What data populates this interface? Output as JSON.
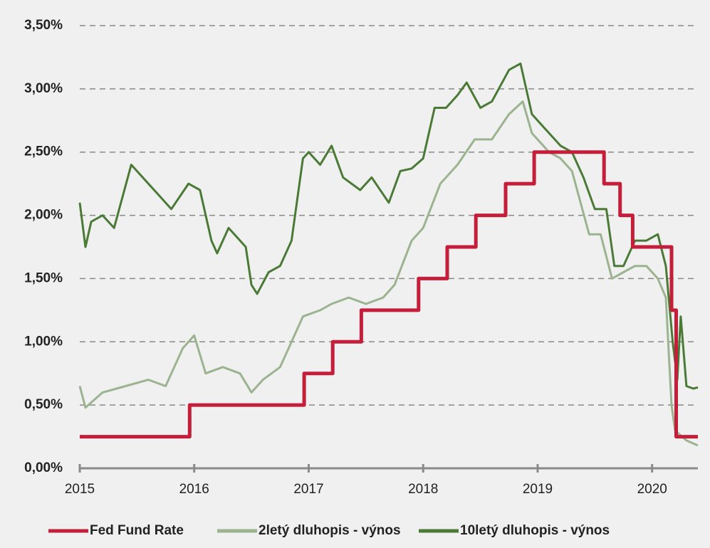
{
  "chart_data": {
    "type": "line",
    "xlim": [
      2015,
      2020.4
    ],
    "xticks": [
      2015,
      2016,
      2017,
      2018,
      2019,
      2020
    ],
    "ylim": [
      0,
      3.5
    ],
    "yticks": [
      {
        "value": 0,
        "label": "0,00%"
      },
      {
        "value": 0.5,
        "label": "0,50%"
      },
      {
        "value": 1,
        "label": "1,00%"
      },
      {
        "value": 1.5,
        "label": "1,50%"
      },
      {
        "value": 2,
        "label": "2,00%"
      },
      {
        "value": 2.5,
        "label": "2,50%"
      },
      {
        "value": 3,
        "label": "3,00%"
      },
      {
        "value": 3.5,
        "label": "3,50%"
      }
    ],
    "grid": true,
    "legend": "bottom",
    "series": [
      {
        "name": "Fed Fund Rate",
        "color": "#c41e3a",
        "width": 5,
        "x": [
          2015,
          2015.96,
          2015.96,
          2016.96,
          2016.96,
          2017.21,
          2017.21,
          2017.46,
          2017.46,
          2017.96,
          2017.96,
          2018.21,
          2018.21,
          2018.46,
          2018.46,
          2018.72,
          2018.72,
          2018.97,
          2018.97,
          2019.58,
          2019.58,
          2019.72,
          2019.72,
          2019.83,
          2019.83,
          2020.17,
          2020.17,
          2020.21,
          2020.21,
          2020.4
        ],
        "values": [
          0.25,
          0.25,
          0.5,
          0.5,
          0.75,
          0.75,
          1,
          1,
          1.25,
          1.25,
          1.5,
          1.5,
          1.75,
          1.75,
          2,
          2,
          2.25,
          2.25,
          2.5,
          2.5,
          2.25,
          2.25,
          2,
          2,
          1.75,
          1.75,
          1.25,
          1.25,
          0.25,
          0.25
        ]
      },
      {
        "name": "2letý dluhopis -  výnos",
        "color": "#9bb38f",
        "width": 3,
        "x": [
          2015.0,
          2015.05,
          2015.2,
          2015.4,
          2015.6,
          2015.75,
          2015.9,
          2016.0,
          2016.1,
          2016.25,
          2016.4,
          2016.5,
          2016.6,
          2016.75,
          2016.85,
          2016.95,
          2017.1,
          2017.2,
          2017.35,
          2017.5,
          2017.65,
          2017.75,
          2017.9,
          2018.0,
          2018.15,
          2018.3,
          2018.45,
          2018.6,
          2018.75,
          2018.87,
          2018.95,
          2019.1,
          2019.2,
          2019.3,
          2019.45,
          2019.55,
          2019.65,
          2019.75,
          2019.85,
          2019.95,
          2020.05,
          2020.12,
          2020.17,
          2020.2,
          2020.3,
          2020.4
        ],
        "values": [
          0.65,
          0.48,
          0.6,
          0.65,
          0.7,
          0.65,
          0.95,
          1.05,
          0.75,
          0.8,
          0.75,
          0.6,
          0.7,
          0.8,
          1.0,
          1.2,
          1.25,
          1.3,
          1.35,
          1.3,
          1.35,
          1.45,
          1.8,
          1.9,
          2.25,
          2.4,
          2.6,
          2.6,
          2.8,
          2.9,
          2.65,
          2.5,
          2.45,
          2.35,
          1.85,
          1.85,
          1.5,
          1.55,
          1.6,
          1.6,
          1.5,
          1.35,
          0.5,
          0.3,
          0.22,
          0.18
        ]
      },
      {
        "name": "10letý dluhopis -  výnos",
        "color": "#4a7a35",
        "width": 3,
        "x": [
          2015.0,
          2015.05,
          2015.1,
          2015.2,
          2015.3,
          2015.45,
          2015.55,
          2015.7,
          2015.8,
          2015.95,
          2016.05,
          2016.15,
          2016.2,
          2016.3,
          2016.45,
          2016.5,
          2016.55,
          2016.65,
          2016.75,
          2016.85,
          2016.95,
          2017.0,
          2017.1,
          2017.2,
          2017.3,
          2017.45,
          2017.55,
          2017.7,
          2017.8,
          2017.9,
          2018.0,
          2018.1,
          2018.2,
          2018.3,
          2018.38,
          2018.5,
          2018.6,
          2018.75,
          2018.85,
          2018.95,
          2019.05,
          2019.2,
          2019.3,
          2019.4,
          2019.5,
          2019.6,
          2019.67,
          2019.75,
          2019.85,
          2019.95,
          2020.05,
          2020.12,
          2020.18,
          2020.22,
          2020.25,
          2020.3,
          2020.36,
          2020.4
        ],
        "values": [
          2.1,
          1.75,
          1.95,
          2.0,
          1.9,
          2.4,
          2.3,
          2.15,
          2.05,
          2.25,
          2.2,
          1.8,
          1.7,
          1.9,
          1.75,
          1.45,
          1.38,
          1.55,
          1.6,
          1.8,
          2.45,
          2.5,
          2.4,
          2.55,
          2.3,
          2.2,
          2.3,
          2.1,
          2.35,
          2.37,
          2.45,
          2.85,
          2.85,
          2.95,
          3.05,
          2.85,
          2.9,
          3.15,
          3.2,
          2.8,
          2.7,
          2.55,
          2.5,
          2.3,
          2.05,
          2.05,
          1.6,
          1.6,
          1.8,
          1.8,
          1.85,
          1.6,
          1.0,
          0.7,
          1.2,
          0.65,
          0.63,
          0.64
        ]
      }
    ]
  }
}
